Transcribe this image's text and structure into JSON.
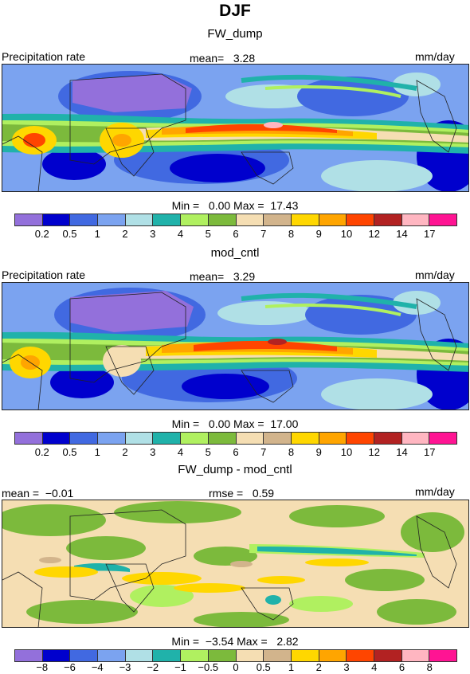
{
  "title": "DJF",
  "panels": [
    {
      "subtitle": "FW_dump",
      "left_label": "Precipitation rate",
      "center_label": "mean=   3.28",
      "right_label": "mm/day",
      "minmax": "Min =   0.00 Max =  17.43",
      "scale": "precip"
    },
    {
      "subtitle": "mod_cntl",
      "left_label": "Precipitation rate",
      "center_label": "mean=   3.29",
      "right_label": "mm/day",
      "minmax": "Min =   0.00 Max =  17.00",
      "scale": "precip"
    },
    {
      "subtitle": "FW_dump - mod_cntl",
      "left_label": "mean =  −0.01",
      "center_label": "rmse =   0.59",
      "right_label": "mm/day",
      "minmax": "Min =  −3.54 Max =   2.82",
      "scale": "diff"
    }
  ],
  "colorbars": {
    "precip": {
      "colors": [
        "#9370db",
        "#0000cd",
        "#4169e1",
        "#7ba3f0",
        "#b0e0e6",
        "#20b2aa",
        "#b0f060",
        "#7cba3c",
        "#f5deb3",
        "#d2b48c",
        "#ffd700",
        "#ffa500",
        "#ff4500",
        "#b22222",
        "#ffb6c1",
        "#ff1493"
      ],
      "ticks": [
        "0.2",
        "0.5",
        "1",
        "2",
        "3",
        "4",
        "5",
        "6",
        "7",
        "8",
        "9",
        "10",
        "12",
        "14",
        "17"
      ]
    },
    "diff": {
      "colors": [
        "#9370db",
        "#0000cd",
        "#4169e1",
        "#7ba3f0",
        "#b0e0e6",
        "#20b2aa",
        "#b0f060",
        "#7cba3c",
        "#f5deb3",
        "#d2b48c",
        "#ffd700",
        "#ffa500",
        "#ff4500",
        "#b22222",
        "#ffb6c1",
        "#ff1493"
      ],
      "ticks": [
        "−8",
        "−6",
        "−4",
        "−3",
        "−2",
        "−1",
        "−0.5",
        "0",
        "0.5",
        "1",
        "2",
        "3",
        "4",
        "6",
        "8"
      ]
    }
  }
}
